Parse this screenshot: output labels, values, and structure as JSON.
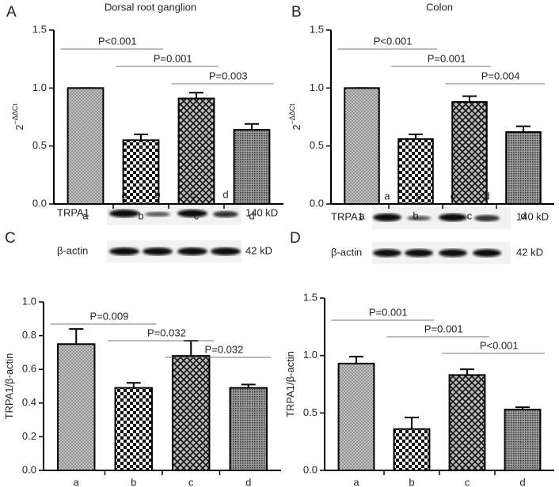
{
  "chart_data": [
    {
      "type": "bar",
      "panel": "A",
      "title": "Dorsal root ganglion",
      "ylabel": {
        "base": "2",
        "superscript": "−ΔΔCt"
      },
      "categories": [
        "a",
        "b",
        "c",
        "d"
      ],
      "values": [
        1.0,
        0.55,
        0.91,
        0.64
      ],
      "errors": [
        0,
        0.05,
        0.05,
        0.05
      ],
      "ylim": [
        0,
        1.5
      ],
      "yticks": [
        {
          "value": 0,
          "label": "0.0"
        },
        {
          "value": 0.5,
          "label": "0.5"
        },
        {
          "value": 1,
          "label": "1.0"
        },
        {
          "value": 1.5,
          "label": "1.5"
        }
      ],
      "annotations": [
        "P<0.001",
        "P=0.001",
        "P=0.003"
      ]
    },
    {
      "type": "bar",
      "panel": "B",
      "title": "Colon",
      "ylabel": {
        "base": "2",
        "superscript": "−ΔΔCt"
      },
      "categories": [
        "a",
        "b",
        "c",
        "d"
      ],
      "values": [
        1.0,
        0.56,
        0.88,
        0.62
      ],
      "errors": [
        0,
        0.04,
        0.05,
        0.05
      ],
      "ylim": [
        0,
        1.5
      ],
      "yticks": [
        {
          "value": 0,
          "label": "0.0"
        },
        {
          "value": 0.5,
          "label": "0.5"
        },
        {
          "value": 1,
          "label": "1.0"
        },
        {
          "value": 1.5,
          "label": "1.5"
        }
      ],
      "annotations": [
        "P<0.001",
        "P=0.001",
        "P=0.004"
      ]
    },
    {
      "type": "bar",
      "panel": "C",
      "ylabel": {
        "base": "TRPA1/β-actin"
      },
      "blot": {
        "lanes": [
          "a",
          "b",
          "c",
          "d"
        ],
        "rows": [
          {
            "name": "TRPA1",
            "size": "140 kD"
          },
          {
            "name": "β-actin",
            "size": "42 kD"
          }
        ]
      },
      "categories": [
        "a",
        "b",
        "c",
        "d"
      ],
      "values": [
        0.75,
        0.49,
        0.68,
        0.49
      ],
      "errors": [
        0.09,
        0.03,
        0.09,
        0.02
      ],
      "ylim": [
        0,
        1
      ],
      "yticks": [
        {
          "value": 0,
          "label": "0.0"
        },
        {
          "value": 0.2,
          "label": "0.2"
        },
        {
          "value": 0.4,
          "label": "0.4"
        },
        {
          "value": 0.6,
          "label": "0.6"
        },
        {
          "value": 0.8,
          "label": "0.8"
        },
        {
          "value": 1,
          "label": "1.0"
        }
      ],
      "annotations": [
        "P=0.009",
        "P=0.032",
        "P=0.032"
      ]
    },
    {
      "type": "bar",
      "panel": "D",
      "ylabel": {
        "base": "TRPA1/β-actin"
      },
      "blot": {
        "lanes": [
          "a",
          "b",
          "c",
          "d"
        ],
        "rows": [
          {
            "name": "TRPA1",
            "size": "140 kD"
          },
          {
            "name": "β-actin",
            "size": "42 kD"
          }
        ]
      },
      "categories": [
        "a",
        "b",
        "c",
        "d"
      ],
      "values": [
        0.93,
        0.36,
        0.83,
        0.53
      ],
      "errors": [
        0.06,
        0.1,
        0.05,
        0.02
      ],
      "ylim": [
        0,
        1.5
      ],
      "yticks": [
        {
          "value": 0,
          "label": "0.0"
        },
        {
          "value": 0.5,
          "label": "0.5"
        },
        {
          "value": 1,
          "label": "1.0"
        },
        {
          "value": 1.5,
          "label": "1.5"
        }
      ],
      "annotations": [
        "P=0.001",
        "P=0.001",
        "P<0.001"
      ]
    }
  ]
}
